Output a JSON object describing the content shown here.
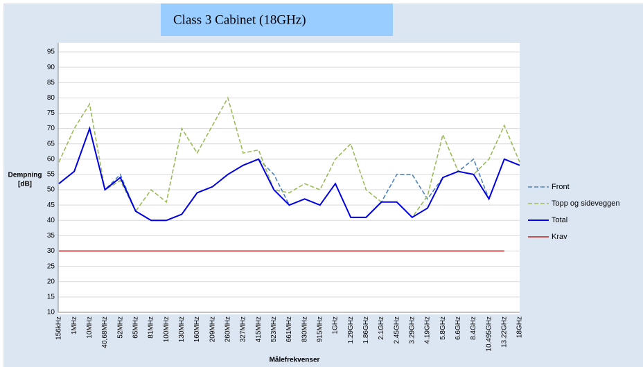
{
  "chart_data": {
    "type": "line",
    "title": "Class 3 Cabinet (18GHz)",
    "x_label": "Målefrekvenser",
    "y_label": [
      "Dempning",
      "[dB]"
    ],
    "categories": [
      "156kHz",
      "1MHz",
      "10MHz",
      "40,68MHz",
      "52MHz",
      "65MHz",
      "81MHz",
      "100MHz",
      "130MHz",
      "160MHz",
      "209MHz",
      "260MHz",
      "327MHz",
      "415MHz",
      "523MHz",
      "661MHz",
      "830MHz",
      "915MHz",
      "1GHz",
      "1.29GHz",
      "1.86GHz",
      "2.1GHz",
      "2.45GHz",
      "3.29GHz",
      "4.19GHz",
      "5.8GHz",
      "6.6GHz",
      "8.4GHz",
      "10.495GHz",
      "13.22GHz",
      "18GHz"
    ],
    "series": [
      {
        "name": "Front",
        "color": "#4f81bd",
        "dash": true,
        "values": [
          52,
          56,
          70,
          50,
          55,
          43,
          40,
          40,
          42,
          49,
          51,
          55,
          58,
          60,
          55,
          45,
          47,
          45,
          52,
          41,
          41,
          46,
          55,
          55,
          47,
          54,
          56,
          60,
          47,
          60,
          58
        ]
      },
      {
        "name": "Topp og sideveggen",
        "color": "#9bbb59",
        "dash": true,
        "values": [
          59,
          70,
          78,
          50,
          53,
          43,
          50,
          46,
          70,
          62,
          71,
          80,
          62,
          63,
          50,
          49,
          52,
          50,
          60,
          65,
          50,
          46,
          46,
          41,
          48,
          68,
          56,
          55,
          60,
          71,
          59
        ]
      },
      {
        "name": "Total",
        "color": "#0000e0",
        "dash": false,
        "values": [
          52,
          56,
          70,
          50,
          54,
          43,
          40,
          40,
          42,
          49,
          51,
          55,
          58,
          60,
          50,
          45,
          47,
          45,
          52,
          41,
          41,
          46,
          46,
          41,
          44,
          54,
          56,
          55,
          47,
          60,
          58
        ]
      },
      {
        "name": "Krav",
        "color": "#c0504d",
        "dash": false,
        "values": [
          30,
          30,
          30,
          30,
          30,
          30,
          30,
          30,
          30,
          30,
          30,
          30,
          30,
          30,
          30,
          30,
          30,
          30,
          30,
          30,
          30,
          30,
          30,
          30,
          30,
          30,
          30,
          30,
          30,
          30,
          null
        ]
      }
    ],
    "ylim": [
      10,
      95
    ],
    "yticks": [
      10,
      15,
      20,
      25,
      30,
      35,
      40,
      45,
      50,
      55,
      60,
      65,
      70,
      75,
      80,
      85,
      90,
      95
    ],
    "grid": true,
    "legend": "right"
  }
}
